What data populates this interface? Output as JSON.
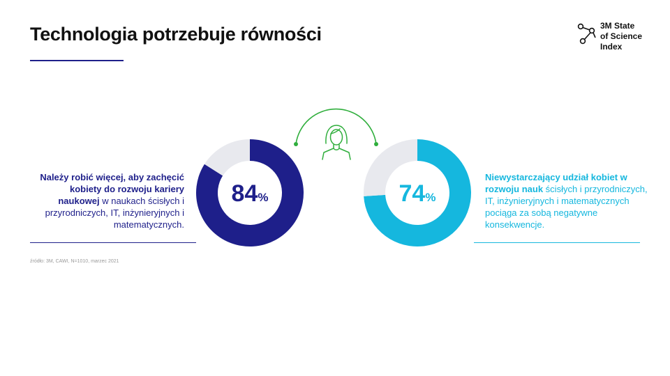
{
  "page": {
    "title": "Technologia potrzebuje równości",
    "logo_text": "3M State\nof Science\nIndex",
    "left_text_bold": "Należy robić więcej, aby zachęcić kobiety do rozwoju kariery naukowej",
    "left_text_regular": " w naukach ścisłych i przyrodniczych, IT, inżynieryjnych i matematycznych.",
    "right_text_bold": "Niewystarczający udział kobiet w rozwoju nauk",
    "right_text_regular": " ścisłych i przyrodniczych, IT, inżynieryjnych i matematycznych pociąga za sobą negatywne konsekwencje.",
    "source": "źródło: 3M, CAWI, N=1010, marzec 2021",
    "colors": {
      "navy": "#1e1f8a",
      "cyan": "#15b7de",
      "grey": "#e8e9ee",
      "green": "#2fae3c"
    },
    "icons": [
      "molecule-logo-icon",
      "woman-icon"
    ]
  },
  "chart_data": [
    {
      "type": "pie",
      "donut": true,
      "values": [
        84,
        16
      ],
      "center_label": "84",
      "center_unit": "%",
      "colors": [
        "#1e1f8a",
        "#e8e9ee"
      ]
    },
    {
      "type": "pie",
      "donut": true,
      "values": [
        74,
        26
      ],
      "center_label": "74",
      "center_unit": "%",
      "colors": [
        "#15b7de",
        "#e8e9ee"
      ]
    }
  ]
}
